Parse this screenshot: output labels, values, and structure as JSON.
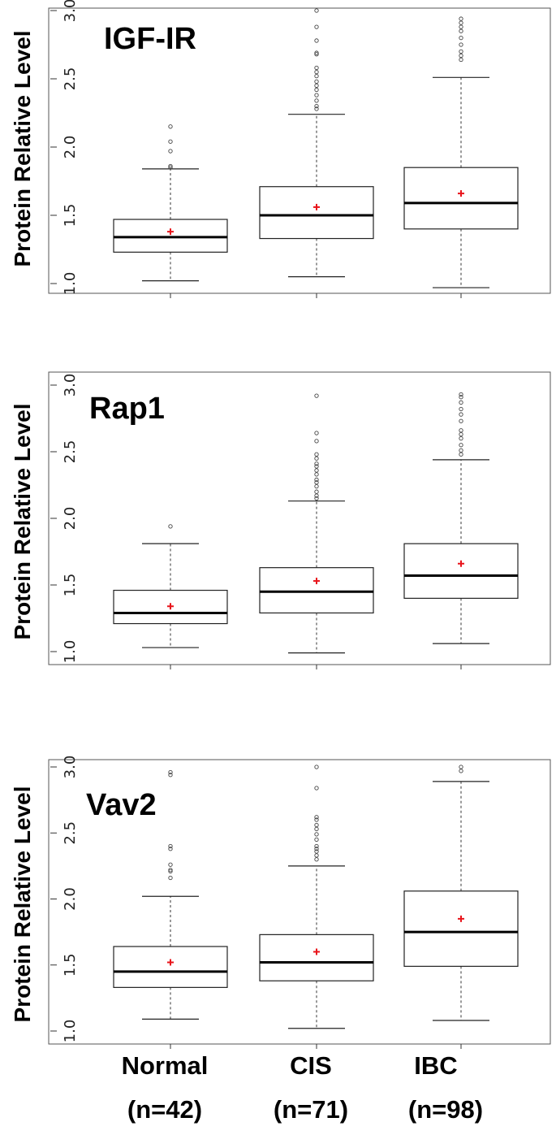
{
  "chart_data": [
    {
      "type": "box",
      "title": "IGF-IR",
      "ylabel": "Protein Relative Level",
      "ylim": [
        0.97,
        3.0
      ],
      "yticks": [
        "1.0",
        "1.5",
        "2.0",
        "2.5",
        "3.0"
      ],
      "groups": [
        {
          "name": "Normal",
          "min": 1.02,
          "q1": 1.23,
          "median": 1.34,
          "q3": 1.47,
          "max": 1.84,
          "mean": 1.38,
          "outliers": [
            1.85,
            1.86,
            1.97,
            2.04,
            2.15
          ]
        },
        {
          "name": "CIS",
          "min": 1.05,
          "q1": 1.33,
          "median": 1.5,
          "q3": 1.71,
          "max": 2.24,
          "mean": 1.56,
          "outliers": [
            2.28,
            2.3,
            2.34,
            2.38,
            2.42,
            2.45,
            2.48,
            2.52,
            2.55,
            2.58,
            2.68,
            2.69,
            2.78,
            2.88,
            3.0
          ]
        },
        {
          "name": "IBC",
          "min": 0.97,
          "q1": 1.4,
          "median": 1.59,
          "q3": 1.85,
          "max": 2.51,
          "mean": 1.66,
          "outliers": [
            2.64,
            2.67,
            2.7,
            2.75,
            2.8,
            2.85,
            2.88,
            2.91,
            2.94
          ]
        }
      ]
    },
    {
      "type": "box",
      "title": "Rap1",
      "ylabel": "Protein Relative Level",
      "ylim": [
        0.97,
        3.0
      ],
      "yticks": [
        "1.0",
        "1.5",
        "2.0",
        "2.5",
        "3.0"
      ],
      "groups": [
        {
          "name": "Normal",
          "min": 1.03,
          "q1": 1.21,
          "median": 1.29,
          "q3": 1.46,
          "max": 1.81,
          "mean": 1.34,
          "outliers": [
            1.94
          ]
        },
        {
          "name": "CIS",
          "min": 0.99,
          "q1": 1.29,
          "median": 1.45,
          "q3": 1.63,
          "max": 2.13,
          "mean": 1.53,
          "outliers": [
            2.15,
            2.17,
            2.2,
            2.24,
            2.27,
            2.29,
            2.33,
            2.36,
            2.39,
            2.41,
            2.45,
            2.48,
            2.58,
            2.64,
            2.92
          ]
        },
        {
          "name": "IBC",
          "min": 1.06,
          "q1": 1.4,
          "median": 1.57,
          "q3": 1.81,
          "max": 2.44,
          "mean": 1.66,
          "outliers": [
            2.48,
            2.51,
            2.55,
            2.6,
            2.63,
            2.66,
            2.73,
            2.78,
            2.82,
            2.87,
            2.91,
            2.93
          ]
        }
      ]
    },
    {
      "type": "box",
      "title": "Vav2",
      "ylabel": "Protein Relative Level",
      "ylim": [
        0.97,
        3.0
      ],
      "yticks": [
        "1.0",
        "1.5",
        "2.0",
        "2.5",
        "3.0"
      ],
      "groups": [
        {
          "name": "Normal",
          "min": 1.09,
          "q1": 1.33,
          "median": 1.45,
          "q3": 1.64,
          "max": 2.02,
          "mean": 1.52,
          "outliers": [
            2.16,
            2.21,
            2.22,
            2.26,
            2.38,
            2.4,
            2.94,
            2.96
          ]
        },
        {
          "name": "CIS",
          "min": 1.02,
          "q1": 1.38,
          "median": 1.52,
          "q3": 1.73,
          "max": 2.25,
          "mean": 1.6,
          "outliers": [
            2.3,
            2.33,
            2.36,
            2.38,
            2.4,
            2.45,
            2.49,
            2.53,
            2.56,
            2.6,
            2.62,
            2.84,
            3.0
          ]
        },
        {
          "name": "IBC",
          "min": 1.08,
          "q1": 1.49,
          "median": 1.75,
          "q3": 2.06,
          "max": 2.89,
          "mean": 1.85,
          "outliers": [
            2.97,
            3.0
          ]
        }
      ]
    }
  ],
  "x_groups": [
    {
      "name": "Normal",
      "n": "(n=42)"
    },
    {
      "name": "CIS",
      "n": "(n=71)"
    },
    {
      "name": "IBC",
      "n": "(n=98)"
    }
  ],
  "colors": {
    "mean_marker": "#e8141b",
    "box_stroke": "#222222",
    "median": "#000000",
    "outlier": "#444444"
  }
}
